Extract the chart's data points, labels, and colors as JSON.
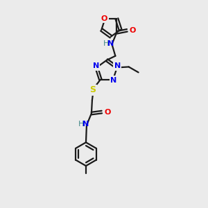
{
  "background_color": "#ebebeb",
  "bond_color": "#1a1a1a",
  "nitrogen_color": "#0000ee",
  "oxygen_color": "#ee0000",
  "sulfur_color": "#cccc00",
  "nh_color": "#448888",
  "lw": 1.6,
  "xlim": [
    0,
    10
  ],
  "ylim": [
    0,
    15
  ]
}
